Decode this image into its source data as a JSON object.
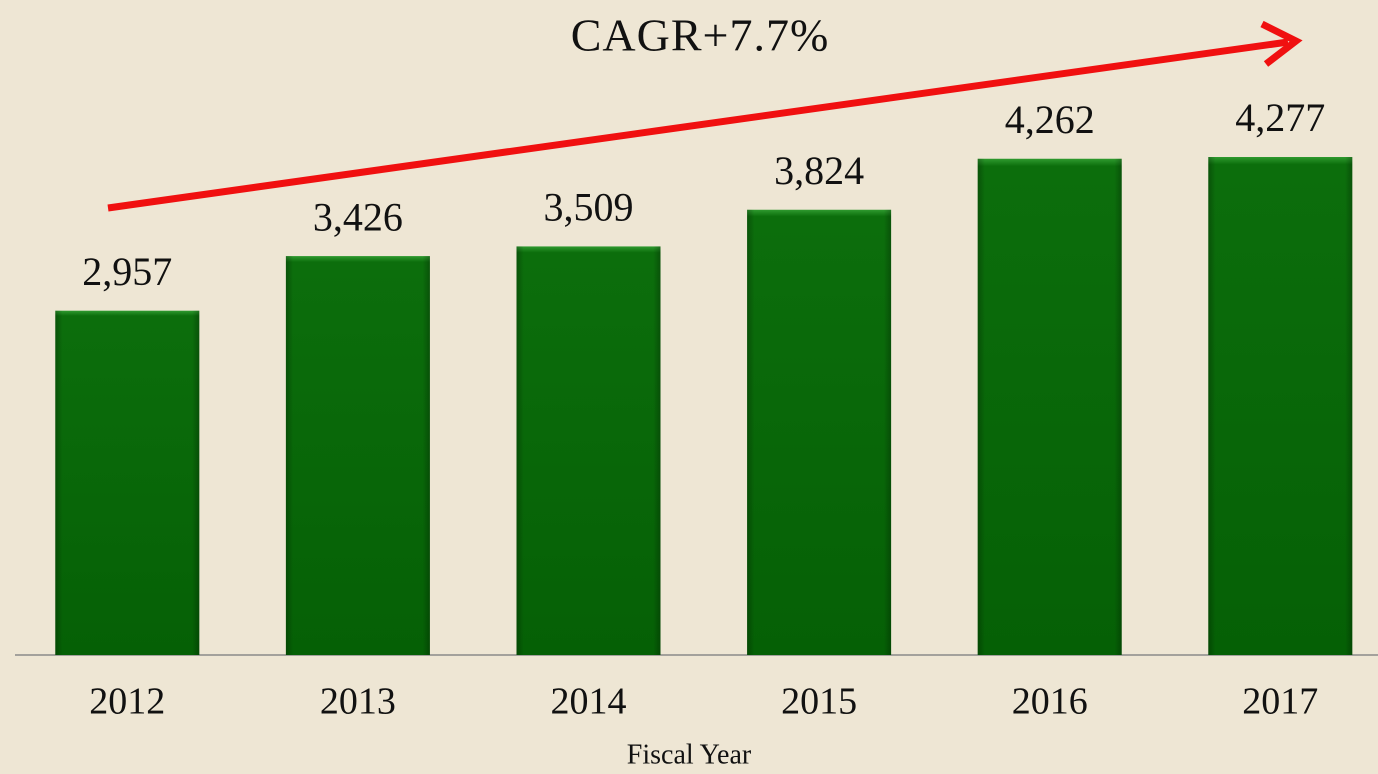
{
  "chart_data": {
    "type": "bar",
    "annotation": "CAGR+7.7%",
    "x_label": "Fiscal Year",
    "categories": [
      "2012",
      "2013",
      "2014",
      "2015",
      "2016",
      "2017"
    ],
    "values": [
      2957,
      3426,
      3509,
      3824,
      4262,
      4277
    ],
    "value_labels": [
      "2,957",
      "3,426",
      "3,509",
      "3,824",
      "4,262",
      "4,277"
    ],
    "color": "#076607"
  }
}
